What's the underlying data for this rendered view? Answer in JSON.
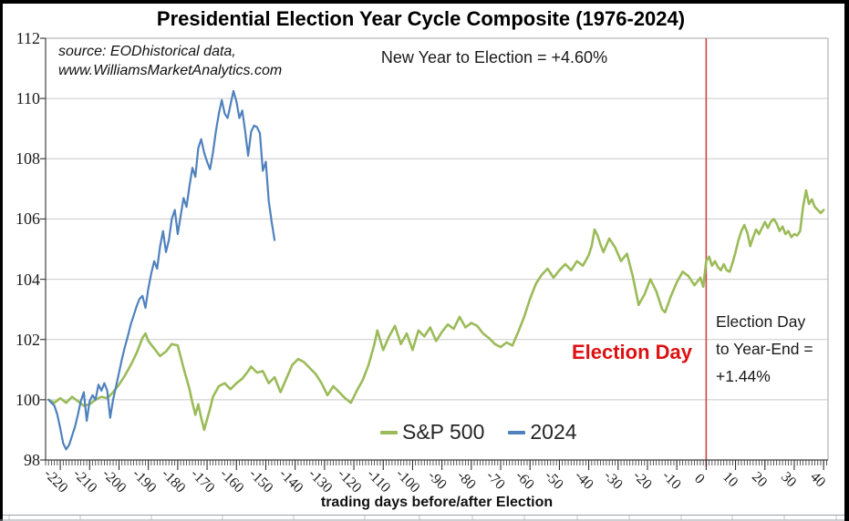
{
  "chart_data": {
    "type": "line",
    "title": "Presidential Election Year Cycle Composite (1976-2024)",
    "source_line1": "source: EODhistorical data,",
    "source_line2": "www.WilliamsMarketAnalytics.com",
    "annotation_new_year": "New Year to Election = +4.60%",
    "annotation_election_day": "Election Day",
    "annotation_right_lines": [
      "Election Day",
      "to Year-End =",
      "+1.44%"
    ],
    "xlabel": "trading days before/after Election",
    "x_ticks": [
      -220,
      -210,
      -200,
      -190,
      -180,
      -170,
      -160,
      -150,
      -140,
      -130,
      -120,
      -110,
      -100,
      -90,
      -80,
      -70,
      -60,
      -50,
      -40,
      -30,
      -20,
      -10,
      0,
      10,
      20,
      30,
      40
    ],
    "y_ticks": [
      98,
      100,
      102,
      104,
      106,
      108,
      110,
      112
    ],
    "xlim": [
      -225,
      41.5
    ],
    "ylim": [
      98,
      112
    ],
    "x_minor_tick_step": 1,
    "grid": "horizontal",
    "election_day_x": 0,
    "legend_position": "bottom-center",
    "colors": {
      "sp500": "#9bbb59",
      "y2024": "#4f81bd",
      "grid": "#c9c9c9",
      "axis": "#404040",
      "plot_border": "#a6a6a6",
      "election_line": "#cc4444",
      "election_text": "#dd1111",
      "cell_line": "#c0c6cc",
      "sheet_edge": "#9aa0a6"
    },
    "legend": [
      {
        "label": "S&P 500",
        "color": "#9bbb59"
      },
      {
        "label": "2024",
        "color": "#4f81bd"
      }
    ],
    "series": [
      {
        "name": "S&P 500",
        "color": "#9bbb59",
        "width": 2.6,
        "points": [
          [
            -224,
            100
          ],
          [
            -222,
            99.9
          ],
          [
            -220,
            100.05
          ],
          [
            -218,
            99.9
          ],
          [
            -216,
            100.1
          ],
          [
            -214,
            99.95
          ],
          [
            -212,
            99.8
          ],
          [
            -210,
            99.85
          ],
          [
            -208,
            100
          ],
          [
            -206,
            100.1
          ],
          [
            -204,
            100.05
          ],
          [
            -202,
            100.25
          ],
          [
            -200,
            100.5
          ],
          [
            -198,
            100.8
          ],
          [
            -196,
            101.15
          ],
          [
            -194,
            101.55
          ],
          [
            -192,
            102.05
          ],
          [
            -191,
            102.2
          ],
          [
            -190,
            101.95
          ],
          [
            -188,
            101.7
          ],
          [
            -186,
            101.45
          ],
          [
            -184,
            101.6
          ],
          [
            -182,
            101.85
          ],
          [
            -180,
            101.8
          ],
          [
            -178,
            101.05
          ],
          [
            -176,
            100.35
          ],
          [
            -175,
            99.9
          ],
          [
            -174,
            99.5
          ],
          [
            -173,
            99.85
          ],
          [
            -172,
            99.4
          ],
          [
            -171,
            99
          ],
          [
            -170,
            99.35
          ],
          [
            -169,
            99.7
          ],
          [
            -168,
            100.1
          ],
          [
            -166,
            100.45
          ],
          [
            -164,
            100.55
          ],
          [
            -162,
            100.35
          ],
          [
            -160,
            100.55
          ],
          [
            -158,
            100.7
          ],
          [
            -156,
            100.95
          ],
          [
            -155,
            101.1
          ],
          [
            -153,
            100.9
          ],
          [
            -151,
            100.95
          ],
          [
            -149,
            100.55
          ],
          [
            -147,
            100.75
          ],
          [
            -145,
            100.25
          ],
          [
            -143,
            100.7
          ],
          [
            -141,
            101.15
          ],
          [
            -139,
            101.35
          ],
          [
            -137,
            101.25
          ],
          [
            -135,
            101.05
          ],
          [
            -133,
            100.85
          ],
          [
            -131,
            100.55
          ],
          [
            -129,
            100.15
          ],
          [
            -127,
            100.45
          ],
          [
            -125,
            100.25
          ],
          [
            -123,
            100.05
          ],
          [
            -121,
            99.9
          ],
          [
            -119,
            100.3
          ],
          [
            -117,
            100.65
          ],
          [
            -115,
            101.15
          ],
          [
            -113,
            101.85
          ],
          [
            -112,
            102.3
          ],
          [
            -110,
            101.65
          ],
          [
            -108,
            102.1
          ],
          [
            -106,
            102.45
          ],
          [
            -104,
            101.85
          ],
          [
            -102,
            102.2
          ],
          [
            -100,
            101.65
          ],
          [
            -98,
            102.3
          ],
          [
            -96,
            102.1
          ],
          [
            -94,
            102.4
          ],
          [
            -92,
            101.95
          ],
          [
            -90,
            102.25
          ],
          [
            -88,
            102.5
          ],
          [
            -86,
            102.35
          ],
          [
            -84,
            102.75
          ],
          [
            -82,
            102.4
          ],
          [
            -80,
            102.55
          ],
          [
            -78,
            102.45
          ],
          [
            -76,
            102.2
          ],
          [
            -74,
            102.05
          ],
          [
            -72,
            101.85
          ],
          [
            -70,
            101.75
          ],
          [
            -68,
            101.9
          ],
          [
            -66,
            101.8
          ],
          [
            -64,
            102.25
          ],
          [
            -62,
            102.75
          ],
          [
            -60,
            103.35
          ],
          [
            -58,
            103.85
          ],
          [
            -56,
            104.15
          ],
          [
            -54,
            104.35
          ],
          [
            -52,
            104.05
          ],
          [
            -50,
            104.3
          ],
          [
            -48,
            104.5
          ],
          [
            -46,
            104.3
          ],
          [
            -44,
            104.6
          ],
          [
            -42,
            104.45
          ],
          [
            -40,
            104.8
          ],
          [
            -39,
            105.1
          ],
          [
            -38,
            105.65
          ],
          [
            -37,
            105.45
          ],
          [
            -36,
            105.15
          ],
          [
            -35,
            104.9
          ],
          [
            -33,
            105.35
          ],
          [
            -31,
            105.05
          ],
          [
            -29,
            104.6
          ],
          [
            -27,
            104.85
          ],
          [
            -25,
            104.1
          ],
          [
            -23,
            103.15
          ],
          [
            -21,
            103.5
          ],
          [
            -19,
            104
          ],
          [
            -17,
            103.6
          ],
          [
            -15,
            103
          ],
          [
            -14,
            102.9
          ],
          [
            -12,
            103.45
          ],
          [
            -10,
            103.9
          ],
          [
            -8,
            104.25
          ],
          [
            -6,
            104.1
          ],
          [
            -4,
            103.8
          ],
          [
            -2,
            104.05
          ],
          [
            -1,
            103.75
          ],
          [
            0,
            104.6
          ],
          [
            1,
            104.75
          ],
          [
            2,
            104.45
          ],
          [
            3,
            104.6
          ],
          [
            4,
            104.4
          ],
          [
            5,
            104.3
          ],
          [
            6,
            104.5
          ],
          [
            7,
            104.3
          ],
          [
            8,
            104.25
          ],
          [
            9,
            104.55
          ],
          [
            10,
            104.9
          ],
          [
            11,
            105.3
          ],
          [
            12,
            105.6
          ],
          [
            13,
            105.8
          ],
          [
            14,
            105.55
          ],
          [
            15,
            105.1
          ],
          [
            16,
            105.4
          ],
          [
            17,
            105.65
          ],
          [
            18,
            105.5
          ],
          [
            19,
            105.7
          ],
          [
            20,
            105.9
          ],
          [
            21,
            105.7
          ],
          [
            22,
            105.9
          ],
          [
            23,
            106
          ],
          [
            24,
            105.85
          ],
          [
            25,
            105.6
          ],
          [
            26,
            105.75
          ],
          [
            27,
            105.5
          ],
          [
            28,
            105.6
          ],
          [
            29,
            105.4
          ],
          [
            30,
            105.5
          ],
          [
            31,
            105.45
          ],
          [
            32,
            105.6
          ],
          [
            33,
            106.4
          ],
          [
            34,
            106.95
          ],
          [
            35,
            106.5
          ],
          [
            36,
            106.65
          ],
          [
            37,
            106.4
          ],
          [
            38,
            106.3
          ],
          [
            39,
            106.2
          ],
          [
            40,
            106.3
          ]
        ]
      },
      {
        "name": "2024",
        "color": "#4f81bd",
        "width": 2.2,
        "points": [
          [
            -224,
            100
          ],
          [
            -223,
            99.9
          ],
          [
            -222,
            99.8
          ],
          [
            -221,
            99.5
          ],
          [
            -220,
            99.05
          ],
          [
            -219,
            98.55
          ],
          [
            -218,
            98.35
          ],
          [
            -217,
            98.5
          ],
          [
            -216,
            98.8
          ],
          [
            -215,
            99.1
          ],
          [
            -214,
            99.5
          ],
          [
            -213,
            99.95
          ],
          [
            -212,
            100.25
          ],
          [
            -211,
            99.3
          ],
          [
            -210,
            99.95
          ],
          [
            -209,
            100.15
          ],
          [
            -208,
            100
          ],
          [
            -207,
            100.5
          ],
          [
            -206,
            100.3
          ],
          [
            -205,
            100.55
          ],
          [
            -204,
            100.3
          ],
          [
            -203,
            99.4
          ],
          [
            -202,
            100
          ],
          [
            -201,
            100.45
          ],
          [
            -200,
            100.9
          ],
          [
            -199,
            101.35
          ],
          [
            -198,
            101.75
          ],
          [
            -197,
            102.1
          ],
          [
            -196,
            102.5
          ],
          [
            -195,
            102.8
          ],
          [
            -194,
            103.1
          ],
          [
            -193,
            103.35
          ],
          [
            -192,
            103.45
          ],
          [
            -191,
            103.05
          ],
          [
            -190,
            103.7
          ],
          [
            -189,
            104.2
          ],
          [
            -188,
            104.6
          ],
          [
            -187,
            104.35
          ],
          [
            -186,
            105.1
          ],
          [
            -185,
            105.6
          ],
          [
            -184,
            104.9
          ],
          [
            -183,
            105.3
          ],
          [
            -182,
            106
          ],
          [
            -181,
            106.3
          ],
          [
            -180,
            105.5
          ],
          [
            -179,
            106.1
          ],
          [
            -178,
            106.7
          ],
          [
            -177,
            106.4
          ],
          [
            -176,
            107.1
          ],
          [
            -175,
            107.7
          ],
          [
            -174,
            107.4
          ],
          [
            -173,
            108.35
          ],
          [
            -172,
            108.65
          ],
          [
            -171,
            108.2
          ],
          [
            -170,
            107.9
          ],
          [
            -169,
            107.65
          ],
          [
            -168,
            108.2
          ],
          [
            -167,
            108.9
          ],
          [
            -166,
            109.5
          ],
          [
            -165,
            109.95
          ],
          [
            -164,
            109.5
          ],
          [
            -163,
            109.35
          ],
          [
            -162,
            109.8
          ],
          [
            -161,
            110.25
          ],
          [
            -160,
            109.9
          ],
          [
            -159,
            109.35
          ],
          [
            -158,
            109.6
          ],
          [
            -157,
            108.9
          ],
          [
            -156,
            108.1
          ],
          [
            -155,
            108.9
          ],
          [
            -154,
            109.1
          ],
          [
            -153,
            109.05
          ],
          [
            -152,
            108.85
          ],
          [
            -151,
            107.6
          ],
          [
            -150,
            107.9
          ],
          [
            -149,
            106.6
          ],
          [
            -148,
            105.9
          ],
          [
            -147,
            105.3
          ]
        ]
      }
    ]
  }
}
